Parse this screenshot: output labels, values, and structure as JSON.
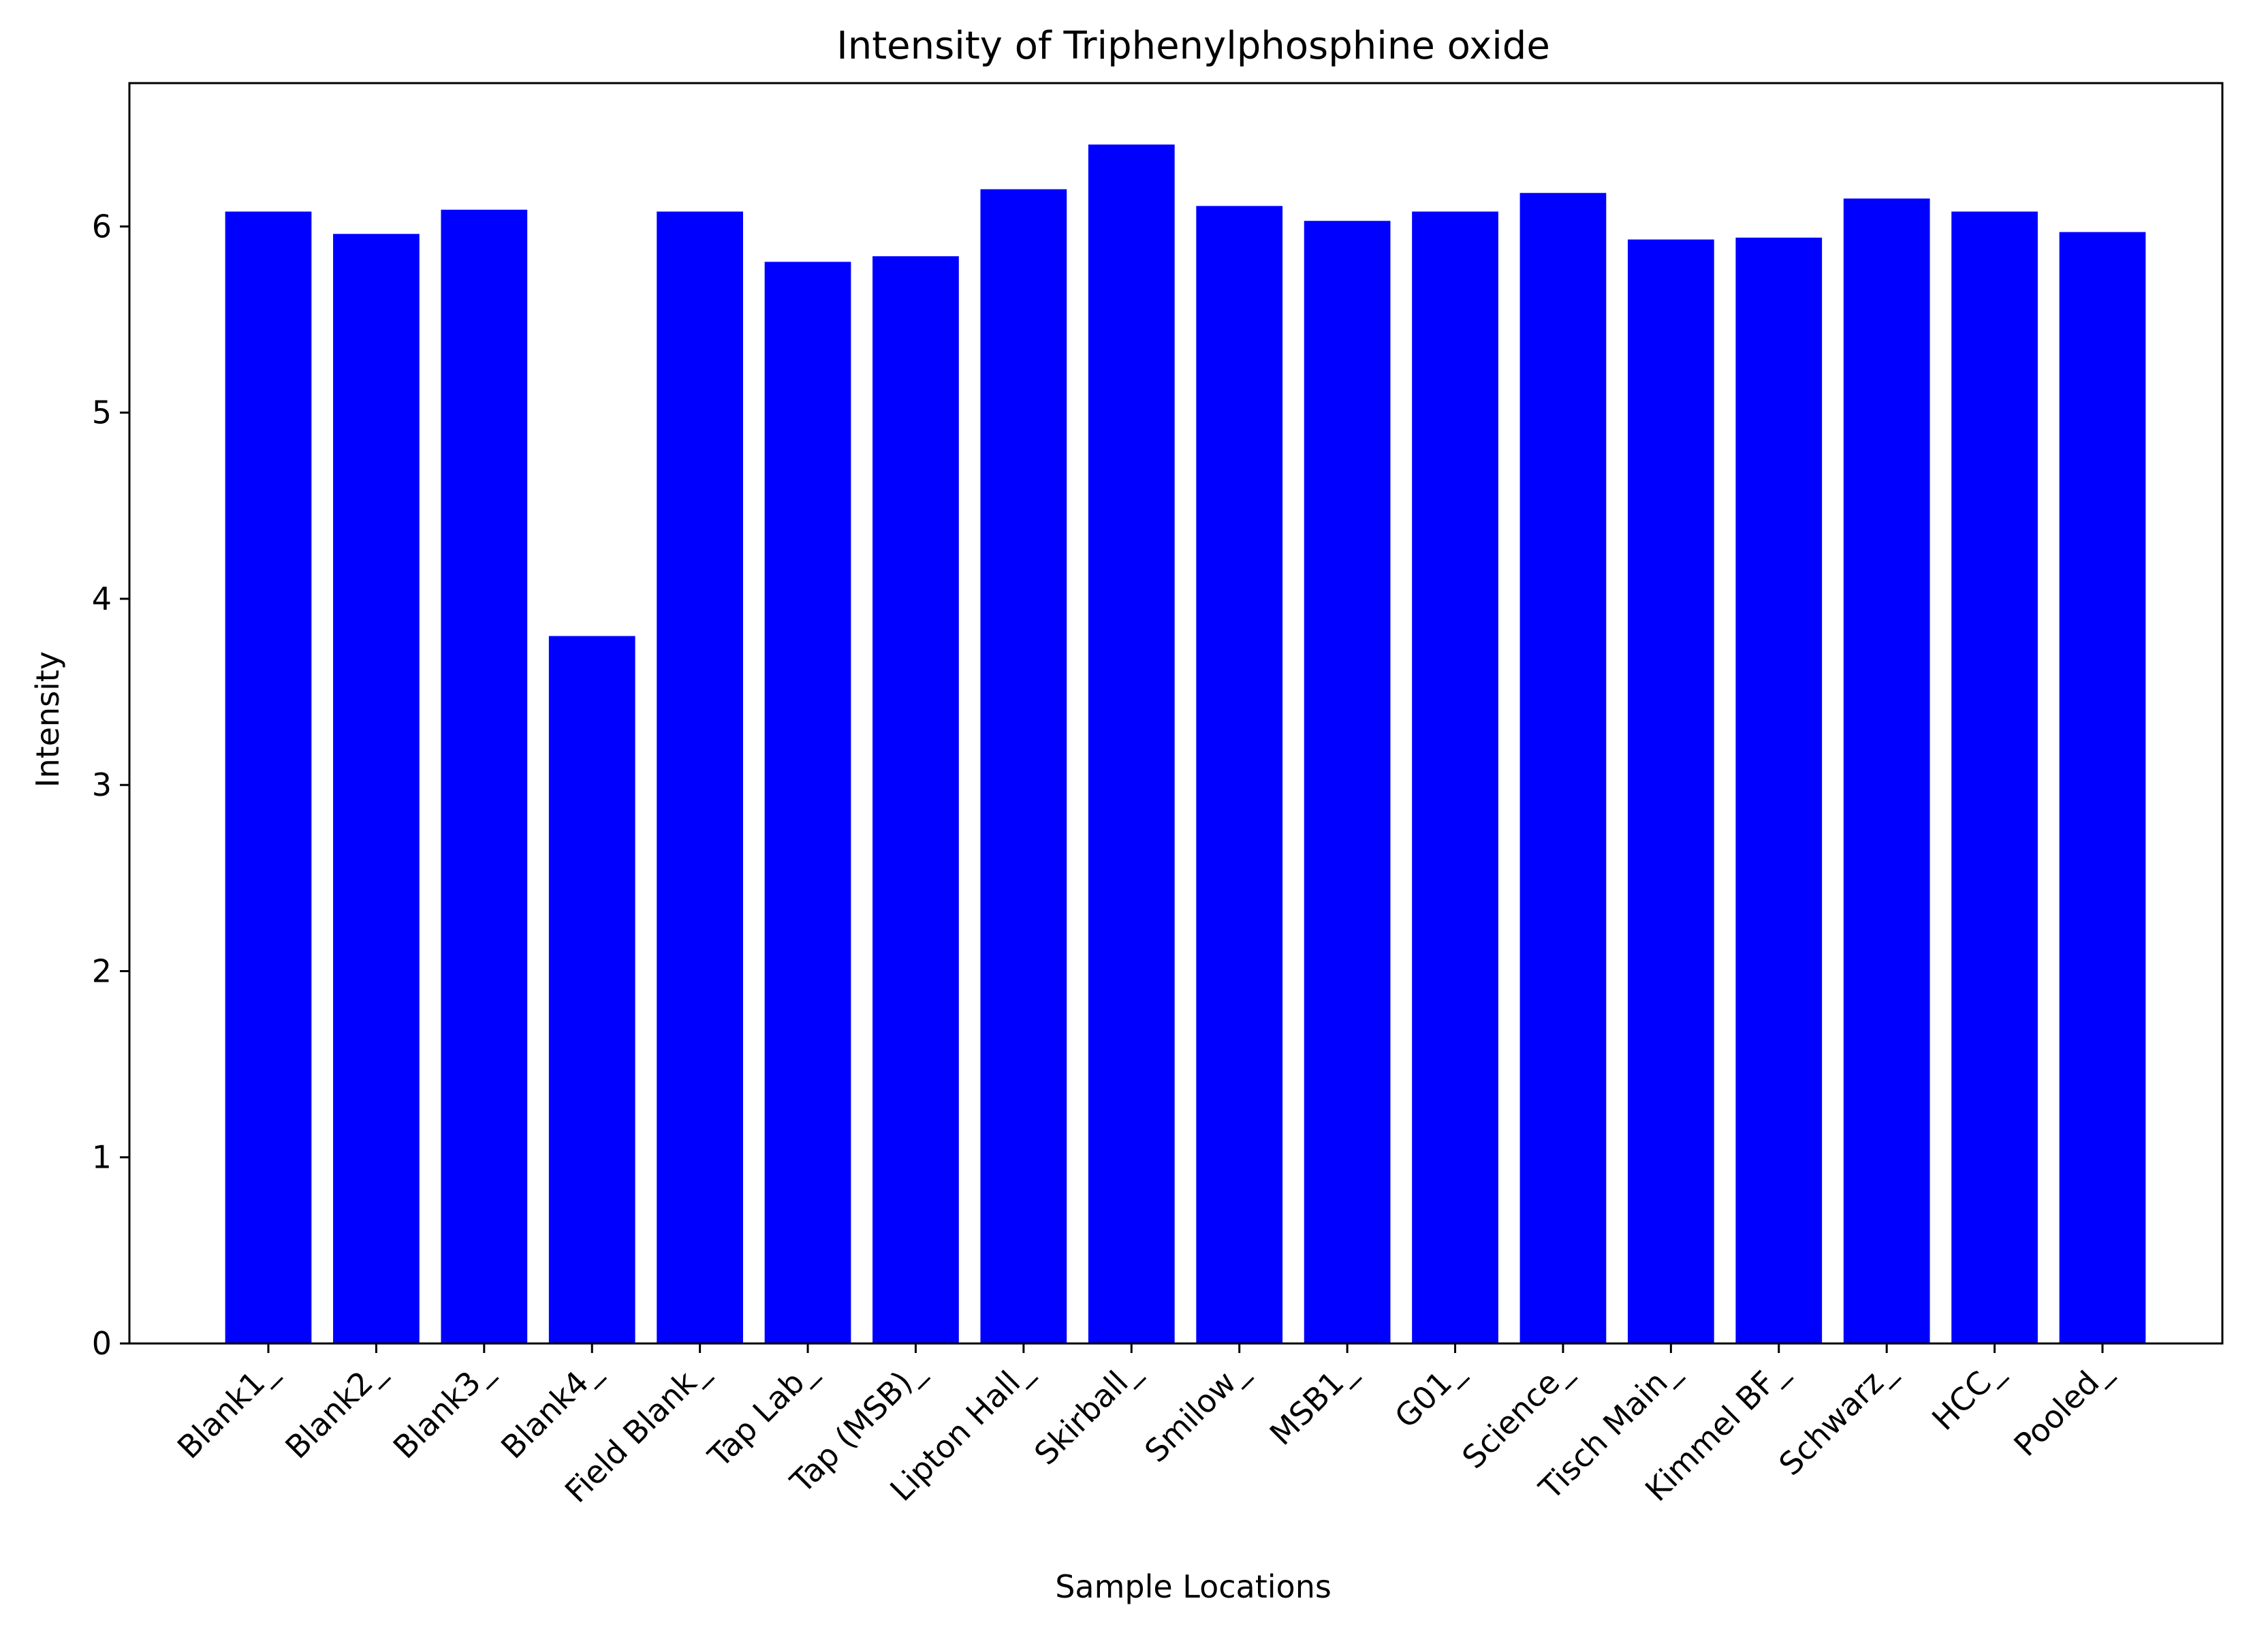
{
  "chart_data": {
    "type": "bar",
    "title": "Intensity of Triphenylphosphine oxide",
    "xlabel": "Sample Locations",
    "ylabel": "Intensity",
    "categories": [
      "Blank1_",
      "Blank2_",
      "Blank3_",
      "Blank4_",
      "Field Blank_",
      "Tap Lab_",
      "Tap (MSB)_",
      "Lipton Hall_",
      "Skirball_",
      "Smilow_",
      "MSB1_",
      "G01_",
      "Science_",
      "Tisch Main_",
      "Kimmel BF_",
      "Schwarz_",
      "HCC_",
      "Pooled_"
    ],
    "values": [
      6.08,
      5.96,
      6.09,
      3.8,
      6.08,
      5.81,
      5.84,
      6.2,
      6.44,
      6.11,
      6.03,
      6.08,
      6.18,
      5.93,
      5.94,
      6.15,
      6.08,
      5.97
    ],
    "ylim": [
      0,
      6.77
    ],
    "yticks": [
      "0",
      "1",
      "2",
      "3",
      "4",
      "5",
      "6"
    ],
    "bar_color": "#0000ff",
    "grid": false,
    "legend": "none"
  }
}
